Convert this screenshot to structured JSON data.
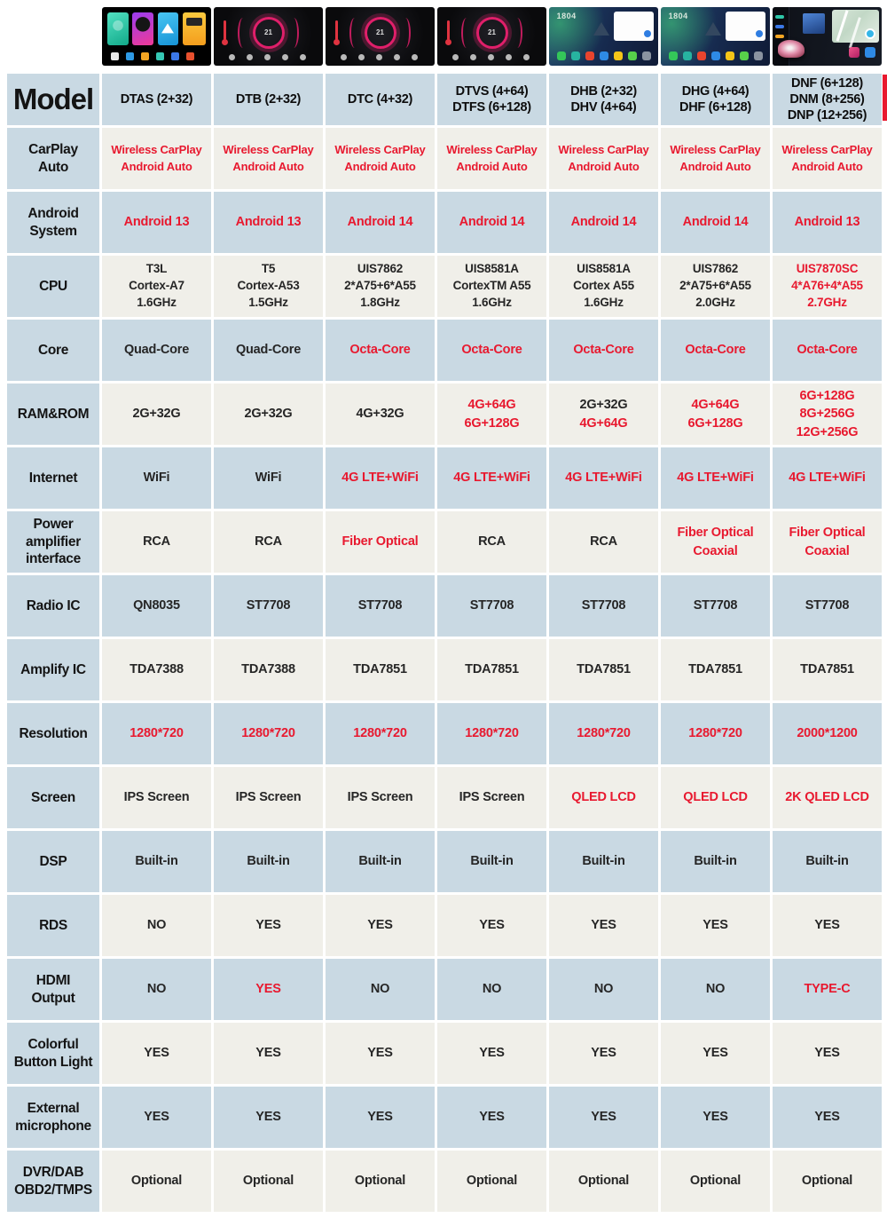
{
  "page": {
    "model_label": "Model"
  },
  "colors": {
    "red": "#e8192f",
    "cell_blue": "#c9d9e3",
    "cell_ivory": "#f0efe9",
    "text_dark": "#141414",
    "text_value": "#262626"
  },
  "header": {
    "columns": [
      {
        "name": "DTAS (2+32)",
        "image": "tiles"
      },
      {
        "name": "DTB (2+32)",
        "image": "gauge",
        "badge": "21"
      },
      {
        "name": "DTC (4+32)",
        "image": "gauge",
        "badge": "21"
      },
      {
        "name": "DTVS (4+64)\nDTFS (6+128)",
        "image": "gauge",
        "badge": "21"
      },
      {
        "name": "DHB (2+32)\nDHV (4+64)",
        "image": "nav",
        "clock": "1804"
      },
      {
        "name": "DHG (4+64)\nDHF (6+128)",
        "image": "nav",
        "clock": "1804"
      },
      {
        "name": "DNF (6+128)\nDNM (8+256)\nDNP (12+256)",
        "image": "map"
      }
    ]
  },
  "rows": [
    {
      "label": "CarPlay\nAuto",
      "cells": [
        {
          "text": "Wireless CarPlay\nAndroid Auto",
          "red": true
        },
        {
          "text": "Wireless CarPlay\nAndroid Auto",
          "red": true
        },
        {
          "text": "Wireless CarPlay\nAndroid Auto",
          "red": true
        },
        {
          "text": "Wireless CarPlay\nAndroid Auto",
          "red": true
        },
        {
          "text": "Wireless CarPlay\nAndroid Auto",
          "red": true
        },
        {
          "text": "Wireless CarPlay\nAndroid Auto",
          "red": true
        },
        {
          "text": "Wireless CarPlay\nAndroid Auto",
          "red": true
        }
      ]
    },
    {
      "label": "Android\nSystem",
      "cells": [
        {
          "text": "Android 13",
          "red": true
        },
        {
          "text": "Android 13",
          "red": true
        },
        {
          "text": "Android 14",
          "red": true
        },
        {
          "text": "Android 14",
          "red": true
        },
        {
          "text": "Android 14",
          "red": true
        },
        {
          "text": "Android 14",
          "red": true
        },
        {
          "text": "Android 13",
          "red": true
        }
      ]
    },
    {
      "label": "CPU",
      "cells": [
        {
          "text": "T3L\nCortex-A7\n1.6GHz"
        },
        {
          "text": "T5\nCortex-A53\n1.5GHz"
        },
        {
          "text": "UIS7862\n2*A75+6*A55\n1.8GHz"
        },
        {
          "text": "UIS8581A\nCortexTM A55\n1.6GHz"
        },
        {
          "text": "UIS8581A\nCortex A55\n1.6GHz"
        },
        {
          "text": "UIS7862\n2*A75+6*A55\n2.0GHz"
        },
        {
          "text": "UIS7870SC\n4*A76+4*A55\n2.7GHz",
          "red": true
        }
      ]
    },
    {
      "label": "Core",
      "cells": [
        {
          "text": "Quad-Core"
        },
        {
          "text": "Quad-Core"
        },
        {
          "text": "Octa-Core",
          "red": true
        },
        {
          "text": "Octa-Core",
          "red": true
        },
        {
          "text": "Octa-Core",
          "red": true
        },
        {
          "text": "Octa-Core",
          "red": true
        },
        {
          "text": "Octa-Core",
          "red": true
        }
      ]
    },
    {
      "label": "RAM&ROM",
      "cells": [
        {
          "text": "2G+32G"
        },
        {
          "text": "2G+32G"
        },
        {
          "text": "4G+32G"
        },
        {
          "text": "4G+64G\n6G+128G",
          "red": true
        },
        {
          "parts": [
            {
              "text": "2G+32G"
            },
            {
              "text": "4G+64G",
              "red": true
            }
          ]
        },
        {
          "text": "4G+64G\n6G+128G",
          "red": true
        },
        {
          "text": "6G+128G\n8G+256G\n12G+256G",
          "red": true
        }
      ]
    },
    {
      "label": "Internet",
      "cells": [
        {
          "text": "WiFi"
        },
        {
          "text": "WiFi"
        },
        {
          "text": "4G LTE+WiFi",
          "red": true
        },
        {
          "text": "4G LTE+WiFi",
          "red": true
        },
        {
          "text": "4G LTE+WiFi",
          "red": true
        },
        {
          "text": "4G LTE+WiFi",
          "red": true
        },
        {
          "text": "4G LTE+WiFi",
          "red": true
        }
      ]
    },
    {
      "label": "Power\namplifier\ninterface",
      "cells": [
        {
          "text": "RCA"
        },
        {
          "text": "RCA"
        },
        {
          "text": "Fiber Optical",
          "red": true
        },
        {
          "text": "RCA"
        },
        {
          "text": "RCA"
        },
        {
          "text": "Fiber Optical\nCoaxial",
          "red": true
        },
        {
          "text": "Fiber Optical\nCoaxial",
          "red": true
        }
      ]
    },
    {
      "label": "Radio IC",
      "cells": [
        {
          "text": "QN8035"
        },
        {
          "text": "ST7708"
        },
        {
          "text": "ST7708"
        },
        {
          "text": "ST7708"
        },
        {
          "text": "ST7708"
        },
        {
          "text": "ST7708"
        },
        {
          "text": "ST7708"
        }
      ]
    },
    {
      "label": "Amplify IC",
      "cells": [
        {
          "text": "TDA7388"
        },
        {
          "text": "TDA7388"
        },
        {
          "text": "TDA7851"
        },
        {
          "text": "TDA7851"
        },
        {
          "text": "TDA7851"
        },
        {
          "text": "TDA7851"
        },
        {
          "text": "TDA7851"
        }
      ]
    },
    {
      "label": "Resolution",
      "cells": [
        {
          "text": "1280*720",
          "red": true
        },
        {
          "text": "1280*720",
          "red": true
        },
        {
          "text": "1280*720",
          "red": true
        },
        {
          "text": "1280*720",
          "red": true
        },
        {
          "text": "1280*720",
          "red": true
        },
        {
          "text": "1280*720",
          "red": true
        },
        {
          "text": "2000*1200",
          "red": true
        }
      ]
    },
    {
      "label": "Screen",
      "cells": [
        {
          "text": "IPS Screen"
        },
        {
          "text": "IPS Screen"
        },
        {
          "text": "IPS Screen"
        },
        {
          "text": "IPS Screen"
        },
        {
          "text": "QLED LCD",
          "red": true
        },
        {
          "text": "QLED LCD",
          "red": true
        },
        {
          "text": "2K QLED LCD",
          "red": true
        }
      ]
    },
    {
      "label": "DSP",
      "cells": [
        {
          "text": "Built-in"
        },
        {
          "text": "Built-in"
        },
        {
          "text": "Built-in"
        },
        {
          "text": "Built-in"
        },
        {
          "text": "Built-in"
        },
        {
          "text": "Built-in"
        },
        {
          "text": "Built-in"
        }
      ]
    },
    {
      "label": "RDS",
      "cells": [
        {
          "text": "NO"
        },
        {
          "text": "YES"
        },
        {
          "text": "YES"
        },
        {
          "text": "YES"
        },
        {
          "text": "YES"
        },
        {
          "text": "YES"
        },
        {
          "text": "YES"
        }
      ]
    },
    {
      "label": "HDMI\nOutput",
      "cells": [
        {
          "text": "NO"
        },
        {
          "text": "YES",
          "red": true
        },
        {
          "text": "NO"
        },
        {
          "text": "NO"
        },
        {
          "text": "NO"
        },
        {
          "text": "NO"
        },
        {
          "text": "TYPE-C",
          "red": true
        }
      ]
    },
    {
      "label": "Colorful\nButton Light",
      "cells": [
        {
          "text": "YES"
        },
        {
          "text": "YES"
        },
        {
          "text": "YES"
        },
        {
          "text": "YES"
        },
        {
          "text": "YES"
        },
        {
          "text": "YES"
        },
        {
          "text": "YES"
        }
      ]
    },
    {
      "label": "External\nmicrophone",
      "cells": [
        {
          "text": "YES"
        },
        {
          "text": "YES"
        },
        {
          "text": "YES"
        },
        {
          "text": "YES"
        },
        {
          "text": "YES"
        },
        {
          "text": "YES"
        },
        {
          "text": "YES"
        }
      ]
    },
    {
      "label": "DVR/DAB\nOBD2/TMPS",
      "cells": [
        {
          "text": "Optional"
        },
        {
          "text": "Optional"
        },
        {
          "text": "Optional"
        },
        {
          "text": "Optional"
        },
        {
          "text": "Optional"
        },
        {
          "text": "Optional"
        },
        {
          "text": "Optional"
        }
      ]
    }
  ]
}
